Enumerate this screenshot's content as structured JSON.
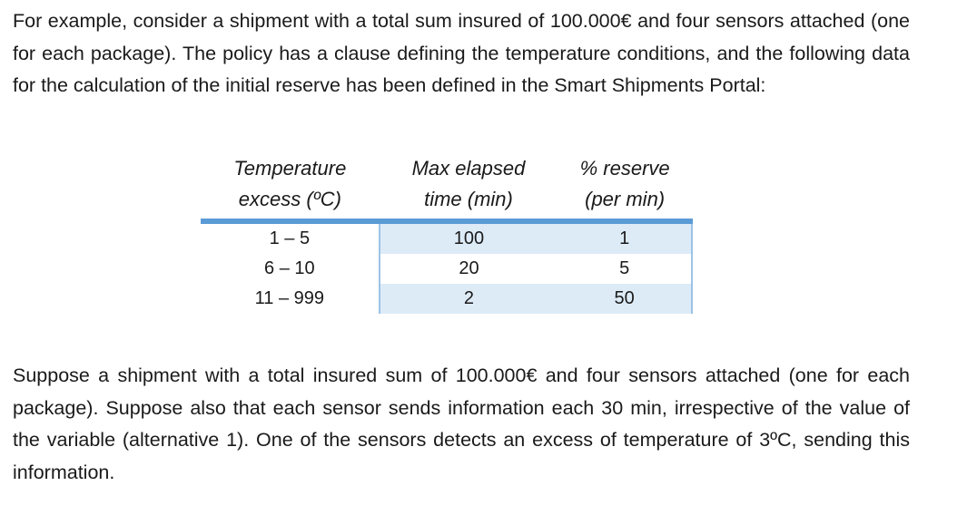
{
  "paragraph_1": "For example, consider a shipment with a total sum insured of 100.000€ and four sensors attached (one for each package). The policy has a clause defining the temperature conditions, and the following data for the calculation of the initial reserve has been defined in the Smart Shipments Portal:",
  "table": {
    "headers": [
      {
        "line1": "Temperature",
        "line2": "excess (ºC)"
      },
      {
        "line1": "Max elapsed",
        "line2": "time (min)"
      },
      {
        "line1": "% reserve",
        "line2": "(per min)"
      }
    ],
    "rows": [
      {
        "temperature_excess": "1 – 5",
        "max_elapsed_time": "100",
        "reserve_per_min": "1"
      },
      {
        "temperature_excess": "6 – 10",
        "max_elapsed_time": "20",
        "reserve_per_min": "5"
      },
      {
        "temperature_excess": "11 – 999",
        "max_elapsed_time": "2",
        "reserve_per_min": "50"
      }
    ],
    "colors": {
      "header_rule": "#5b9bd5",
      "band_fill": "#ddebf7",
      "band_border": "#9dc3e6"
    }
  },
  "paragraph_2": "Suppose a shipment with a total insured sum of 100.000€ and four sensors attached (one for each package). Suppose also that each sensor sends information each 30 min, irrespective of the value of the variable (alternative 1). One of the sensors detects an excess of temperature of 3ºC, sending this information."
}
